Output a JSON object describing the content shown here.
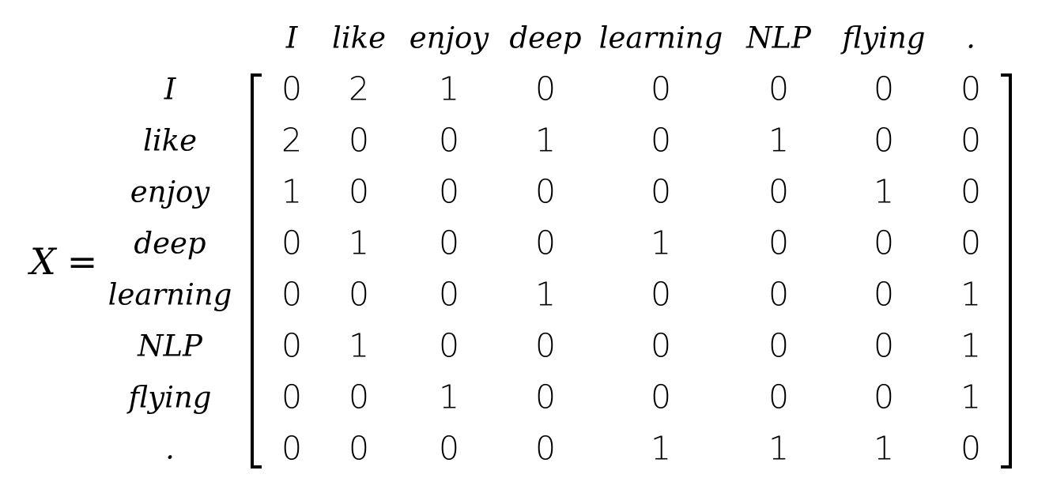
{
  "lhs": {
    "variable": "X",
    "equals": "="
  },
  "columns": [
    "I",
    "like",
    "enjoy",
    "deep",
    "learning",
    "NLP",
    "flying",
    "."
  ],
  "rows": [
    "I",
    "like",
    "enjoy",
    "deep",
    "learning",
    "NLP",
    "flying",
    "."
  ],
  "matrix": [
    [
      0,
      2,
      1,
      0,
      0,
      0,
      0,
      0
    ],
    [
      2,
      0,
      0,
      1,
      0,
      1,
      0,
      0
    ],
    [
      1,
      0,
      0,
      0,
      0,
      0,
      1,
      0
    ],
    [
      0,
      1,
      0,
      0,
      1,
      0,
      0,
      0
    ],
    [
      0,
      0,
      0,
      1,
      0,
      0,
      0,
      1
    ],
    [
      0,
      1,
      0,
      0,
      0,
      0,
      0,
      1
    ],
    [
      0,
      0,
      1,
      0,
      0,
      0,
      0,
      1
    ],
    [
      0,
      0,
      0,
      0,
      1,
      1,
      1,
      0
    ]
  ]
}
